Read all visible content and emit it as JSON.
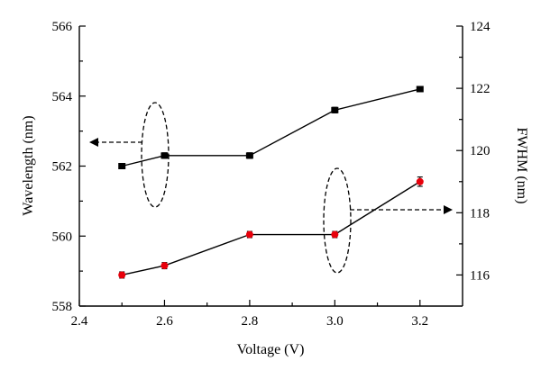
{
  "chart_data": {
    "type": "line",
    "x": [
      2.5,
      2.6,
      2.8,
      3.0,
      3.2
    ],
    "xlabel": "Voltage (V)",
    "xlim": [
      2.4,
      3.3
    ],
    "xticks": [
      "2.4",
      "2.6",
      "2.8",
      "3.0",
      "3.2"
    ],
    "ylabel_left": "Wavelength (nm)",
    "ylim_left": [
      558,
      566
    ],
    "yticks_left": [
      "558",
      "560",
      "562",
      "564",
      "566"
    ],
    "ylabel_right": "FWHM (nm)",
    "ylim_right": [
      115,
      124
    ],
    "yticks_right": [
      "116",
      "118",
      "120",
      "122",
      "124"
    ],
    "grid": false,
    "series": [
      {
        "axis": "left",
        "color": "#000000",
        "marker": "square",
        "values": [
          562.0,
          562.3,
          562.3,
          563.6,
          564.2
        ],
        "errors": [
          0.05,
          0.08,
          0.08,
          0.08,
          0.06
        ]
      },
      {
        "axis": "right",
        "color": "#e8000b",
        "marker": "circle",
        "values": [
          116.0,
          116.3,
          117.3,
          117.3,
          119.0
        ],
        "errors": [
          0.1,
          0.1,
          0.1,
          0.1,
          0.15
        ]
      }
    ],
    "annotations": [
      {
        "shape": "dashed-ellipse-arrow",
        "target": "left-axis"
      },
      {
        "shape": "dashed-ellipse-arrow",
        "target": "right-axis"
      }
    ]
  }
}
